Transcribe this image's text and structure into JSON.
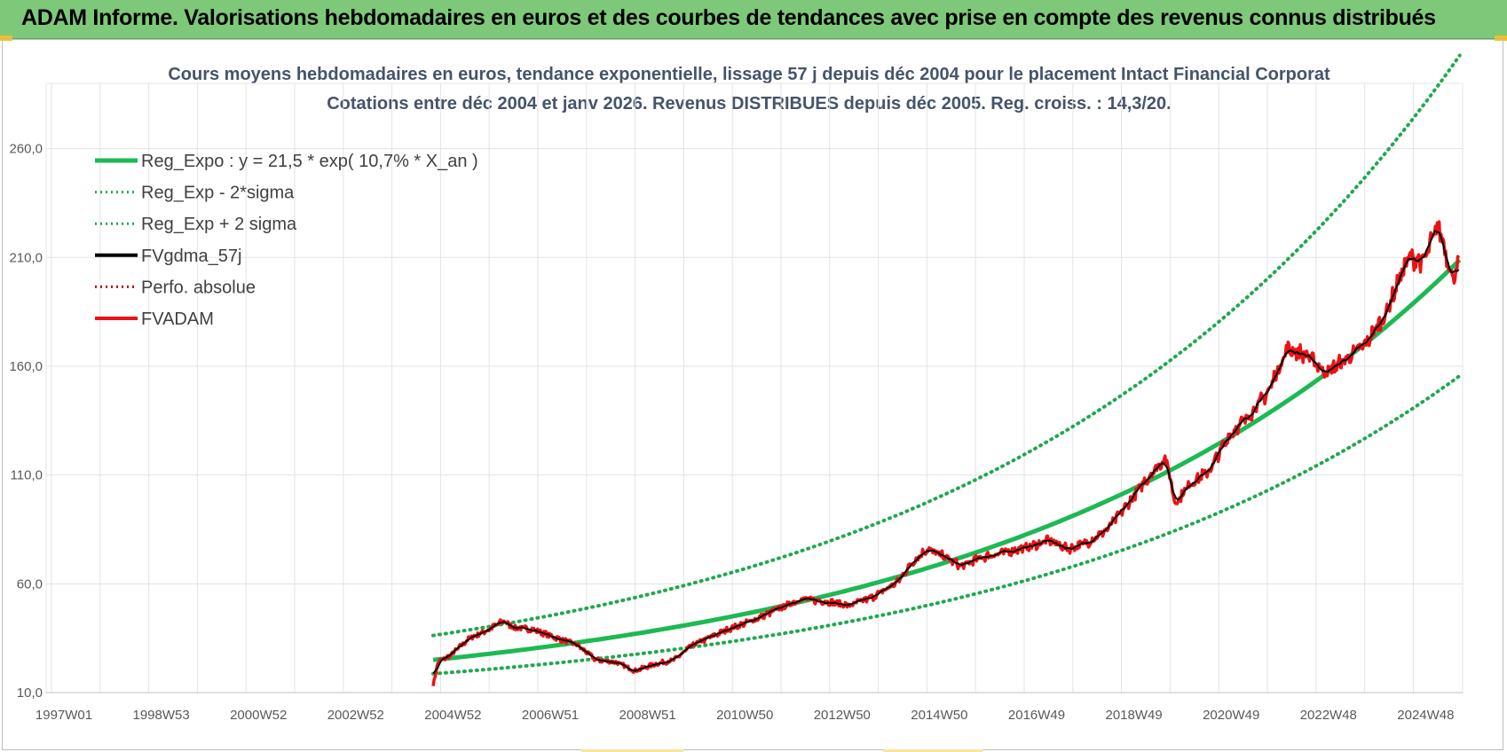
{
  "header": {
    "title": "ADAM Informe. Valorisations hebdomadaires en euros et des courbes de tendances avec prise en compte des revenus connus distribués"
  },
  "chart_data": {
    "type": "line",
    "title": "Cours moyens hebdomadaires en euros, tendance exponentielle, lissage 57 j depuis déc 2004 pour le placement Intact Financial Corporat",
    "subtitle": "Cotations entre déc 2004 et janv 2026. Revenus DISTRIBUES depuis déc 2005. Reg. croiss. : 14,3/20.",
    "xlabel": "",
    "ylabel": "",
    "x_range": [
      "1997W01",
      "2026W02"
    ],
    "x_tick_labels": [
      "1997W01",
      "1998W53",
      "2000W52",
      "2002W52",
      "2004W52",
      "2006W51",
      "2008W51",
      "2010W50",
      "2012W50",
      "2014W50",
      "2016W49",
      "2018W49",
      "2020W49",
      "2022W48",
      "2024W48"
    ],
    "y_tick_labels": [
      "10,0",
      "60,0",
      "110,0",
      "160,0",
      "210,0",
      "260,0"
    ],
    "ylim": [
      10,
      290
    ],
    "y_ticks": [
      10,
      60,
      110,
      160,
      210,
      260
    ],
    "grid": true,
    "legend_position": "top-left",
    "regression": {
      "a": 21.5,
      "rate": 0.107,
      "start": 2004.95,
      "sigma_low_factor": 0.745,
      "sigma_high_factor": 1.45
    },
    "series": [
      {
        "name": "Reg_Expo : y = 21,5 * exp( 10,7% *  X_an )",
        "color": "#1db954",
        "style": "solid"
      },
      {
        "name": "Reg_Exp - 2*sigma",
        "color": "#1fa84f",
        "style": "dotted"
      },
      {
        "name": "Reg_Exp + 2 sigma",
        "color": "#1fa84f",
        "style": "dotted"
      },
      {
        "name": "FVgdma_57j",
        "color": "#000000",
        "style": "solid"
      },
      {
        "name": "Perfo. absolue",
        "color": "#c00000",
        "style": "dotted"
      },
      {
        "name": "FVADAM",
        "color": "#ee1111",
        "style": "solid"
      }
    ],
    "fvadam_points": {
      "t": [
        2004.95,
        2005.05,
        2005.3,
        2005.7,
        2006.1,
        2006.4,
        2006.6,
        2007.0,
        2007.5,
        2007.9,
        2008.3,
        2008.7,
        2009.1,
        2009.5,
        2009.9,
        2010.3,
        2010.7,
        2011.0,
        2011.5,
        2012.0,
        2012.5,
        2013.0,
        2013.5,
        2014.0,
        2014.5,
        2014.8,
        2015.1,
        2015.5,
        2015.8,
        2016.2,
        2016.8,
        2017.2,
        2017.6,
        2018.0,
        2018.4,
        2018.8,
        2019.2,
        2019.6,
        2020.0,
        2020.2,
        2020.5,
        2020.9,
        2021.3,
        2021.7,
        2022.1,
        2022.5,
        2022.9,
        2023.3,
        2023.7,
        2024.1,
        2024.5,
        2024.8,
        2025.0,
        2025.3,
        2025.6,
        2025.9,
        2026.02
      ],
      "v": [
        13,
        24,
        27,
        35,
        39,
        43,
        40,
        39,
        35,
        32,
        25,
        24,
        20,
        23,
        25,
        32,
        36,
        39,
        43,
        48,
        53,
        52,
        50,
        54,
        61,
        70,
        76,
        72,
        68,
        72,
        75,
        77,
        80,
        76,
        79,
        85,
        96,
        108,
        118,
        97,
        106,
        112,
        128,
        137,
        148,
        168,
        165,
        157,
        163,
        170,
        183,
        200,
        210,
        208,
        225,
        200,
        208
      ]
    }
  }
}
